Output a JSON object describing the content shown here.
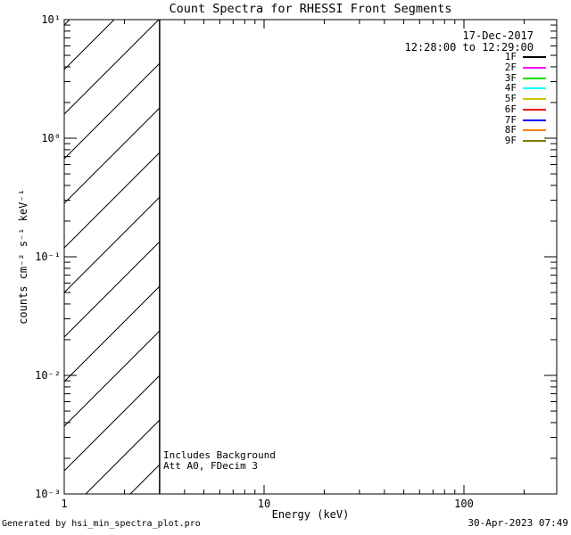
{
  "page": {
    "title": "Count Spectra for RHESSI Front Segments",
    "footer_left": "Generated by hsi_min_spectra_plot.pro",
    "footer_right": "30-Apr-2023 07:49"
  },
  "legend": {
    "date": "17-Dec-2017",
    "time_range": "12:28:00 to 12:29:00",
    "entries": [
      {
        "label": "1F",
        "color": "#000000"
      },
      {
        "label": "2F",
        "color": "#ff00ff"
      },
      {
        "label": "3F",
        "color": "#00dd00"
      },
      {
        "label": "4F",
        "color": "#00ffff"
      },
      {
        "label": "5F",
        "color": "#cfc400"
      },
      {
        "label": "6F",
        "color": "#ee0000"
      },
      {
        "label": "7F",
        "color": "#0000ff"
      },
      {
        "label": "8F",
        "color": "#ff8000"
      },
      {
        "label": "9F",
        "color": "#837a00"
      }
    ]
  },
  "annotations": {
    "background_note": "Includes Background",
    "attenuator_note": "Att A0, FDecim 3"
  },
  "axes": {
    "x_label": "Energy (keV)",
    "y_label": "counts cm⁻² s⁻¹ keV⁻¹",
    "x_major_ticks": [
      {
        "value": 1,
        "label": "1"
      },
      {
        "value": 10,
        "label": "10"
      },
      {
        "value": 100,
        "label": "100"
      }
    ],
    "y_major_ticks": [
      {
        "value": 10,
        "label": "10¹"
      },
      {
        "value": 1,
        "label": "10⁰"
      },
      {
        "value": 0.1,
        "label": "10⁻¹"
      },
      {
        "value": 0.01,
        "label": "10⁻²"
      },
      {
        "value": 0.001,
        "label": "10⁻³"
      }
    ]
  },
  "chart_data": {
    "type": "line",
    "title": "Count Spectra for RHESSI Front Segments",
    "xlabel": "Energy (keV)",
    "ylabel": "counts cm^-2 s^-1 keV^-1",
    "x_scale": "log",
    "y_scale": "log",
    "xlim": [
      1,
      300
    ],
    "ylim": [
      0.001,
      10
    ],
    "grid": false,
    "legend_position": "top-right",
    "date": "17-Dec-2017",
    "time_range": "12:28:00 to 12:29:00",
    "series": [
      {
        "name": "1F",
        "color": "#000000",
        "values": []
      },
      {
        "name": "2F",
        "color": "#ff00ff",
        "values": []
      },
      {
        "name": "3F",
        "color": "#00dd00",
        "values": []
      },
      {
        "name": "4F",
        "color": "#00ffff",
        "values": []
      },
      {
        "name": "5F",
        "color": "#cfc400",
        "values": []
      },
      {
        "name": "6F",
        "color": "#ee0000",
        "values": []
      },
      {
        "name": "7F",
        "color": "#0000ff",
        "values": []
      },
      {
        "name": "8F",
        "color": "#ff8000",
        "values": []
      },
      {
        "name": "9F",
        "color": "#837a00",
        "values": []
      }
    ],
    "hatched_band": {
      "x_start": 1,
      "x_end": 3,
      "fill": "diagonal-hatch",
      "description": "Diagonally hatched low-energy region from 1 to 3 keV; plot area otherwise empty (no spectral curves drawn)"
    }
  }
}
